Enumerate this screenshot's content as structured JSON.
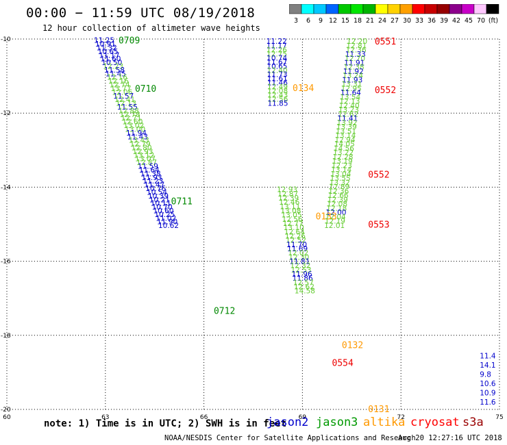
{
  "header": {
    "title": "00:00 − 11:59 UTC 08/19/2018",
    "subtitle": "12 hour collection of altimeter wave heights"
  },
  "colorbar": {
    "colors": [
      "#808080",
      "#00ffff",
      "#00c8ff",
      "#0064ff",
      "#00c800",
      "#00e600",
      "#00b400",
      "#ffff00",
      "#ffd200",
      "#ffa000",
      "#ff0000",
      "#c80000",
      "#960000",
      "#8c008c",
      "#c800c8",
      "#ffc8ff",
      "#000000"
    ],
    "labels": [
      "3",
      "6",
      "9",
      "12",
      "15",
      "18",
      "21",
      "24",
      "27",
      "30",
      "33",
      "36",
      "39",
      "42",
      "45",
      "70",
      "(ft)"
    ]
  },
  "footer": {
    "note": "note: 1) Time is in UTC; 2) SWH is in feet",
    "satellites": [
      {
        "name": "jason2",
        "color": "#0000cc"
      },
      {
        "name": "jason3",
        "color": "#009900"
      },
      {
        "name": "altika",
        "color": "#ff9900"
      },
      {
        "name": "cryosat",
        "color": "#ff0000"
      },
      {
        "name": "s3a",
        "color": "#990000"
      }
    ],
    "credit": "NOAA/NESDIS Center for Satellite Applications and Research",
    "timestamp": "Aug 20 12:27:16 UTC 2018"
  },
  "chart_data": {
    "type": "scatter",
    "x_ticks": [
      "60",
      "63",
      "66",
      "69",
      "72",
      "75"
    ],
    "y_ticks": [
      "-10",
      "-12",
      "-14",
      "-16",
      "-18",
      "-20"
    ],
    "xlim": [
      60,
      75
    ],
    "ylim": [
      -20,
      -10
    ],
    "colors": {
      "blue": "#0000cc",
      "green": "#66cc33",
      "dkgreen": "#008800",
      "orange": "#ff9900",
      "red": "#ee0000"
    },
    "track_labels": [
      {
        "text": "0709",
        "x": 63.4,
        "y": -10.03,
        "c": "dkgreen"
      },
      {
        "text": "0710",
        "x": 63.9,
        "y": -11.33,
        "c": "dkgreen"
      },
      {
        "text": "0711",
        "x": 65.0,
        "y": -14.37,
        "c": "dkgreen"
      },
      {
        "text": "0712",
        "x": 66.3,
        "y": -17.33,
        "c": "dkgreen"
      },
      {
        "text": "0551",
        "x": 71.2,
        "y": -10.06,
        "c": "red"
      },
      {
        "text": "0552",
        "x": 71.2,
        "y": -11.37,
        "c": "red"
      },
      {
        "text": "0552",
        "x": 71.0,
        "y": -13.65,
        "c": "red"
      },
      {
        "text": "0553",
        "x": 71.0,
        "y": -15.0,
        "c": "red"
      },
      {
        "text": "0554",
        "x": 69.9,
        "y": -18.73,
        "c": "red"
      },
      {
        "text": "0134",
        "x": 68.7,
        "y": -11.31,
        "c": "orange"
      },
      {
        "text": "0133",
        "x": 69.4,
        "y": -14.78,
        "c": "orange"
      },
      {
        "text": "0132",
        "x": 70.2,
        "y": -18.25,
        "c": "orange"
      },
      {
        "text": "0131",
        "x": 71.0,
        "y": -19.98,
        "c": "orange"
      }
    ],
    "tracks": [
      {
        "x0": 62.65,
        "y0": -10.03,
        "dx": 0.0392,
        "dy": -0.1,
        "values": [
          [
            "11.25",
            "blue"
          ],
          [
            "10.91",
            "blue"
          ],
          [
            "11.32",
            "blue"
          ],
          [
            "10.65",
            "blue"
          ],
          [
            "11.17",
            "blue"
          ],
          [
            "11.60",
            "blue"
          ],
          [
            "10.50",
            "blue"
          ],
          [
            "12.23",
            "green"
          ],
          [
            "11.58",
            "blue"
          ],
          [
            "11.45",
            "blue"
          ],
          [
            "12.16",
            "green"
          ],
          [
            "12.16",
            "green"
          ],
          [
            "12.74",
            "green"
          ],
          [
            "13.77",
            "green"
          ],
          [
            "12.06",
            "green"
          ],
          [
            "11.57",
            "blue"
          ],
          [
            "12.41",
            "green"
          ],
          [
            "12.13",
            "green"
          ],
          [
            "11.55",
            "blue"
          ],
          [
            "12.88",
            "green"
          ],
          [
            "12.78",
            "green"
          ],
          [
            "12.71",
            "green"
          ],
          [
            "12.60",
            "green"
          ],
          [
            "13.02",
            "green"
          ],
          [
            "13.00",
            "green"
          ],
          [
            "11.94",
            "blue"
          ],
          [
            "11.43",
            "blue"
          ],
          [
            "13.43",
            "green"
          ],
          [
            "12.79",
            "green"
          ],
          [
            "12.80",
            "green"
          ],
          [
            "12.93",
            "green"
          ],
          [
            "13.12",
            "green"
          ],
          [
            "13.07",
            "green"
          ],
          [
            "12.87",
            "green"
          ],
          [
            "11.59",
            "blue"
          ],
          [
            "11.64",
            "blue"
          ],
          [
            "11.38",
            "blue"
          ],
          [
            "11.93",
            "blue"
          ],
          [
            "11.23",
            "blue"
          ],
          [
            "11.47",
            "blue"
          ],
          [
            "10.76",
            "blue"
          ],
          [
            "10.54",
            "blue"
          ],
          [
            "10.39",
            "blue"
          ],
          [
            "10.21",
            "blue"
          ],
          [
            "10.11",
            "blue"
          ],
          [
            "10.70",
            "blue"
          ],
          [
            "10.60",
            "blue"
          ],
          [
            "10.25",
            "blue"
          ],
          [
            "11.02",
            "blue"
          ],
          [
            "11.90",
            "blue"
          ],
          [
            "10.62",
            "blue"
          ]
        ]
      },
      {
        "x0": 67.9,
        "y0": -10.06,
        "dx": 0.0025,
        "dy": -0.111,
        "values": [
          [
            "11.22",
            "blue"
          ],
          [
            "11.17",
            "blue"
          ],
          [
            "12.26",
            "green"
          ],
          [
            "12.75",
            "green"
          ],
          [
            "10.74",
            "blue"
          ],
          [
            "11.67",
            "blue"
          ],
          [
            "10.65",
            "blue"
          ],
          [
            "12.40",
            "green"
          ],
          [
            "11.73",
            "blue"
          ],
          [
            "11.61",
            "blue"
          ],
          [
            "11.46",
            "blue"
          ],
          [
            "12.49",
            "green"
          ],
          [
            "12.08",
            "green"
          ],
          [
            "12.43",
            "green"
          ],
          [
            "12.56",
            "green"
          ],
          [
            "11.85",
            "blue"
          ]
        ]
      },
      {
        "x0": 68.22,
        "y0": -14.06,
        "dx": 0.0225,
        "dy": -0.114,
        "values": [
          [
            "12.93",
            "green"
          ],
          [
            "12.87",
            "green"
          ],
          [
            "12.39",
            "green"
          ],
          [
            "12.46",
            "green"
          ],
          [
            "13.11",
            "green"
          ],
          [
            "13.08",
            "green"
          ],
          [
            "13.05",
            "green"
          ],
          [
            "12.56",
            "green"
          ],
          [
            "12.77",
            "green"
          ],
          [
            "13.10",
            "green"
          ],
          [
            "12.64",
            "green"
          ],
          [
            "12.26",
            "green"
          ],
          [
            "12.52",
            "green"
          ],
          [
            "11.70",
            "blue"
          ],
          [
            "11.69",
            "blue"
          ],
          [
            "12.02",
            "green"
          ],
          [
            "12.30",
            "green"
          ],
          [
            "11.81",
            "blue"
          ],
          [
            "12.32",
            "green"
          ],
          [
            "12.53",
            "green"
          ],
          [
            "11.96",
            "blue"
          ],
          [
            "11.86",
            "blue"
          ],
          [
            "12.57",
            "green"
          ],
          [
            "12.62",
            "green"
          ],
          [
            "14.58",
            "green"
          ]
        ]
      },
      {
        "x0": 70.35,
        "y0": -10.06,
        "dx": -0.016,
        "dy": -0.1155,
        "values": [
          [
            "12.20",
            "green"
          ],
          [
            "12.81",
            "green"
          ],
          [
            "12.36",
            "green"
          ],
          [
            "11.33",
            "blue"
          ],
          [
            "12.70",
            "green"
          ],
          [
            "11.91",
            "blue"
          ],
          [
            "12.38",
            "green"
          ],
          [
            "11.92",
            "blue"
          ],
          [
            "13.24",
            "green"
          ],
          [
            "11.93",
            "blue"
          ],
          [
            "13.31",
            "green"
          ],
          [
            "12.95",
            "green"
          ],
          [
            "11.64",
            "blue"
          ],
          [
            "13.54",
            "green"
          ],
          [
            "12.13",
            "green"
          ],
          [
            "12.40",
            "green"
          ],
          [
            "13.23",
            "green"
          ],
          [
            "12.62",
            "green"
          ],
          [
            "11.41",
            "blue"
          ],
          [
            "13.92",
            "green"
          ],
          [
            "13.39",
            "green"
          ],
          [
            "13.51",
            "green"
          ],
          [
            "13.14",
            "green"
          ],
          [
            "12.94",
            "green"
          ],
          [
            "14.05",
            "green"
          ],
          [
            "14.56",
            "green"
          ],
          [
            "13.22",
            "green"
          ],
          [
            "12.28",
            "green"
          ],
          [
            "13.19",
            "green"
          ],
          [
            "12.23",
            "green"
          ],
          [
            "13.14",
            "green"
          ],
          [
            "13.04",
            "green"
          ],
          [
            "13.55",
            "green"
          ],
          [
            "13.32",
            "green"
          ],
          [
            "12.89",
            "green"
          ],
          [
            "12.36",
            "green"
          ],
          [
            "12.66",
            "green"
          ],
          [
            "12.39",
            "green"
          ],
          [
            "12.08",
            "green"
          ],
          [
            "12.18",
            "green"
          ],
          [
            "12.00",
            "blue"
          ],
          [
            "12.04",
            "green"
          ],
          [
            "12.19",
            "green"
          ],
          [
            "12.01",
            "green"
          ]
        ]
      },
      {
        "x0": 74.4,
        "y0": -18.55,
        "dx": 0.0,
        "dy": -0.25,
        "values": [
          [
            "11.4",
            "blue"
          ],
          [
            "14.1",
            "blue"
          ],
          [
            "9.8",
            "blue"
          ],
          [
            "10.6",
            "blue"
          ],
          [
            "10.9",
            "blue"
          ],
          [
            "11.6",
            "blue"
          ]
        ]
      }
    ]
  }
}
